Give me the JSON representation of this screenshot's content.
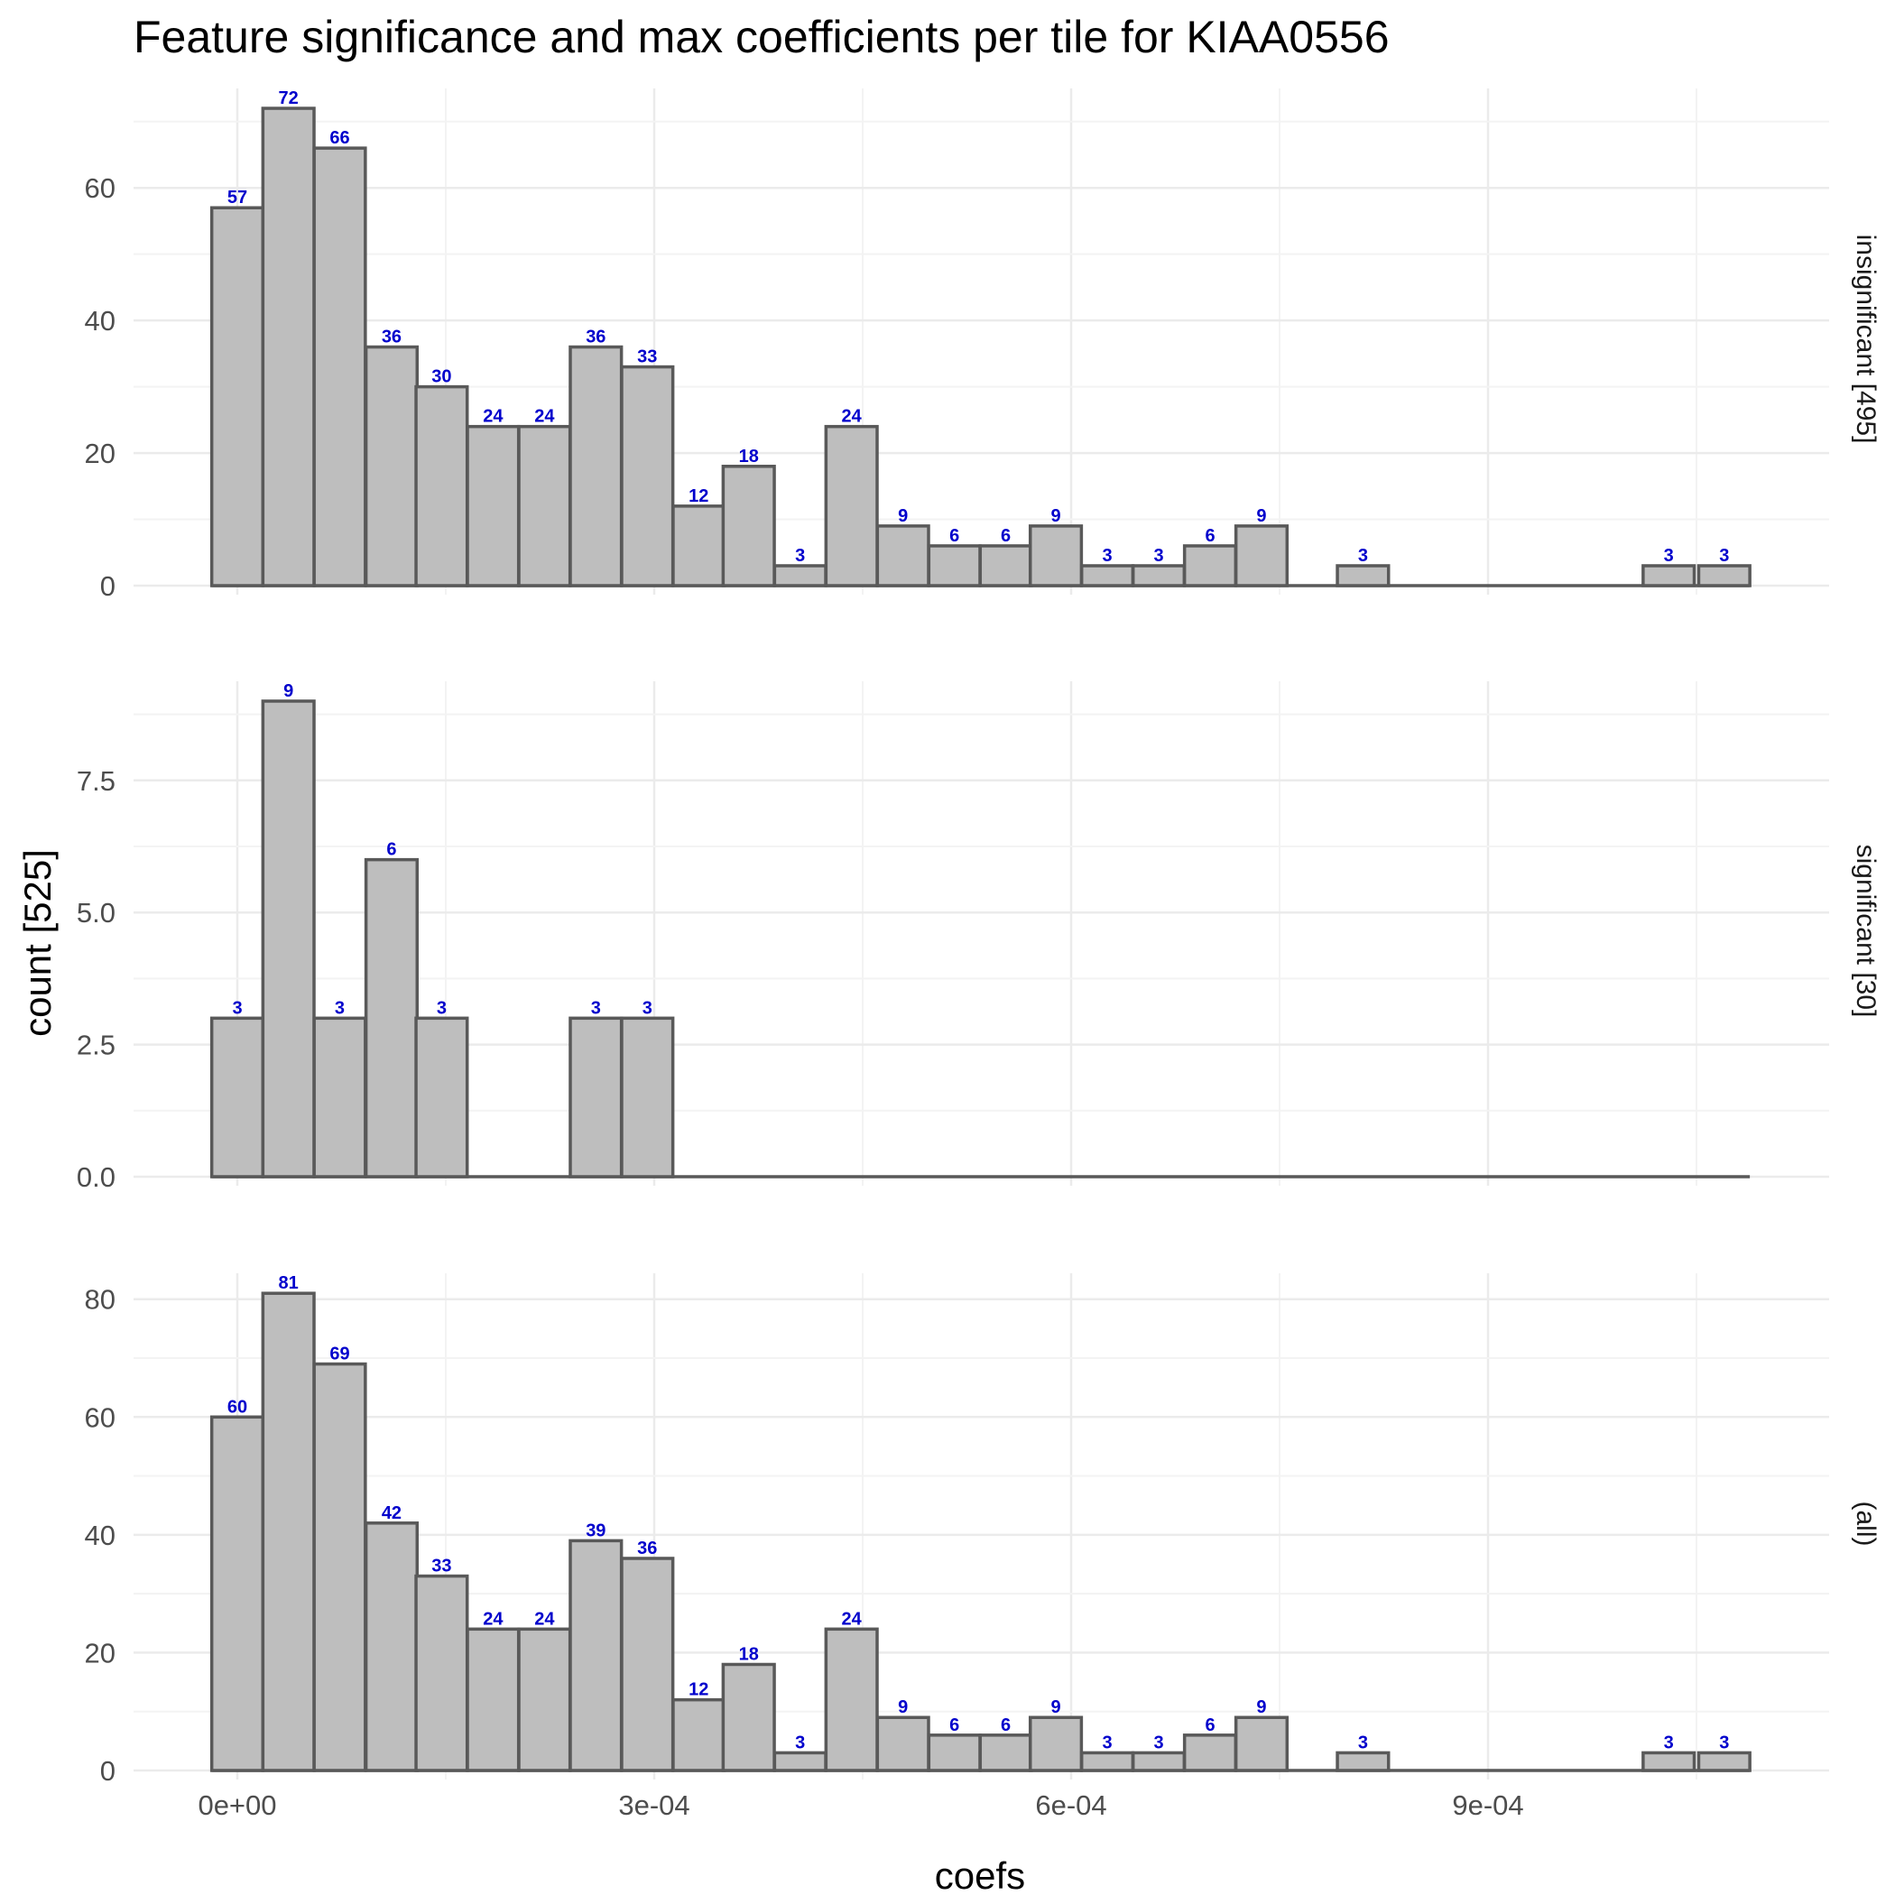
{
  "chart_data": {
    "type": "bar",
    "title": "Feature significance and max coefficients per tile for KIAA0556",
    "xlabel": "coefs",
    "ylabel": "count [525]",
    "xlim": [
      -8e-05,
      0.00115
    ],
    "x_ticks": [
      {
        "value": 0,
        "label": "0e+00"
      },
      {
        "value": 0.0003,
        "label": "3e-04"
      },
      {
        "value": 0.0006,
        "label": "6e-04"
      },
      {
        "value": 0.0009,
        "label": "9e-04"
      }
    ],
    "bin_centers": [
      0.0,
      3.68e-05,
      7.37e-05,
      0.000111,
      0.000147,
      0.000184,
      0.000221,
      0.000258,
      0.000295,
      0.000332,
      0.000368,
      0.000405,
      0.000442,
      0.000479,
      0.000516,
      0.000553,
      0.000589,
      0.000626,
      0.000663,
      0.0007,
      0.000737,
      0.000774,
      0.00081,
      0.000847,
      0.000884,
      0.000921,
      0.000958,
      0.000995,
      0.00103,
      0.00107
    ],
    "bin_width": 3.68e-05,
    "grid": true,
    "facet_strip_position": "right",
    "panels": [
      {
        "strip": "insignificant [495]",
        "ylim": [
          0,
          75
        ],
        "y_ticks": [
          {
            "value": 0,
            "label": "0"
          },
          {
            "value": 20,
            "label": "20"
          },
          {
            "value": 40,
            "label": "40"
          },
          {
            "value": 60,
            "label": "60"
          }
        ],
        "values": [
          57,
          72,
          66,
          36,
          30,
          24,
          24,
          36,
          33,
          12,
          18,
          3,
          24,
          9,
          6,
          6,
          9,
          3,
          3,
          6,
          9,
          0,
          3,
          0,
          0,
          0,
          0,
          0,
          3,
          3
        ],
        "labels": [
          "57",
          "72",
          "66",
          "36",
          "30",
          "24",
          "24",
          "36",
          "33",
          "12",
          "18",
          "3",
          "24",
          "9",
          "6",
          "6",
          "9",
          "3",
          "3",
          "6",
          "9",
          "",
          "3",
          "",
          "",
          "",
          "",
          "",
          "3",
          "3"
        ]
      },
      {
        "strip": "significant [30]",
        "ylim": [
          0,
          9.375
        ],
        "y_ticks": [
          {
            "value": 0,
            "label": "0.0"
          },
          {
            "value": 2.5,
            "label": "2.5"
          },
          {
            "value": 5,
            "label": "5.0"
          },
          {
            "value": 7.5,
            "label": "7.5"
          }
        ],
        "values": [
          3,
          9,
          3,
          6,
          3,
          0,
          0,
          3,
          3,
          0,
          0,
          0,
          0,
          0,
          0,
          0,
          0,
          0,
          0,
          0,
          0,
          0,
          0,
          0,
          0,
          0,
          0,
          0,
          0,
          0
        ],
        "labels": [
          "3",
          "9",
          "3",
          "6",
          "3",
          "",
          "",
          "3",
          "3",
          "",
          "",
          "",
          "",
          "",
          "",
          "",
          "",
          "",
          "",
          "",
          "",
          "",
          "",
          "",
          "",
          "",
          "",
          "",
          "",
          ""
        ]
      },
      {
        "strip": "(all)",
        "ylim": [
          0,
          84.4
        ],
        "y_ticks": [
          {
            "value": 0,
            "label": "0"
          },
          {
            "value": 20,
            "label": "20"
          },
          {
            "value": 40,
            "label": "40"
          },
          {
            "value": 60,
            "label": "60"
          },
          {
            "value": 80,
            "label": "80"
          }
        ],
        "values": [
          60,
          81,
          69,
          42,
          33,
          24,
          24,
          39,
          36,
          12,
          18,
          3,
          24,
          9,
          6,
          6,
          9,
          3,
          3,
          6,
          9,
          0,
          3,
          0,
          0,
          0,
          0,
          0,
          3,
          3
        ],
        "labels": [
          "60",
          "81",
          "69",
          "42",
          "33",
          "24",
          "24",
          "39",
          "36",
          "12",
          "18",
          "3",
          "24",
          "9",
          "6",
          "6",
          "9",
          "3",
          "3",
          "6",
          "9",
          "",
          "3",
          "",
          "",
          "",
          "",
          "",
          "3",
          "3"
        ]
      }
    ],
    "colors": {
      "bar_fill": "#bebebe",
      "bar_stroke": "#595959",
      "label": "#0000cc",
      "grid_major": "#ebebeb",
      "grid_minor": "#f3f3f3",
      "tick_text": "#4d4d4d"
    }
  }
}
